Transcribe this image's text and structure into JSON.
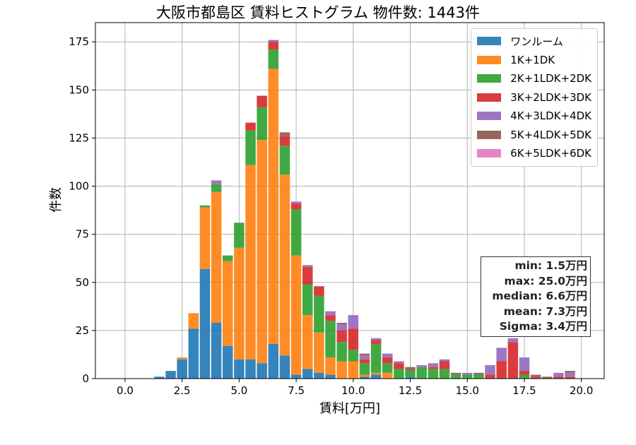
{
  "title": "大阪市都島区 賃料ヒストグラム  物件数: 1443件",
  "chart_data": {
    "type": "bar",
    "stacked": true,
    "title": "大阪市都島区 賃料ヒストグラム  物件数: 1443件",
    "xlabel": "賃料[万円]",
    "ylabel": "件数",
    "xlim": [
      -1.3,
      21.0
    ],
    "ylim": [
      0,
      185
    ],
    "xticks": [
      0.0,
      2.5,
      5.0,
      7.5,
      10.0,
      12.5,
      15.0,
      17.5,
      20.0
    ],
    "xtick_labels": [
      "0.0",
      "2.5",
      "5.0",
      "7.5",
      "10.0",
      "12.5",
      "15.0",
      "17.5",
      "20.0"
    ],
    "yticks": [
      0,
      25,
      50,
      75,
      100,
      125,
      150,
      175
    ],
    "ytick_labels": [
      "0",
      "25",
      "50",
      "75",
      "100",
      "125",
      "150",
      "175"
    ],
    "grid": true,
    "legend_position": "top-right",
    "bin_width": 0.5,
    "x": [
      1.5,
      2.0,
      2.5,
      3.0,
      3.5,
      4.0,
      4.5,
      5.0,
      5.5,
      6.0,
      6.5,
      7.0,
      7.5,
      8.0,
      8.5,
      9.0,
      9.5,
      10.0,
      10.5,
      11.0,
      11.5,
      12.0,
      12.5,
      13.0,
      13.5,
      14.0,
      14.5,
      15.0,
      15.5,
      16.0,
      16.5,
      17.0,
      17.5,
      18.0,
      18.5,
      19.0,
      19.5
    ],
    "series": [
      {
        "name": "ワンルーム",
        "color": "#1f77b4",
        "values": [
          1,
          4,
          10,
          26,
          57,
          29,
          17,
          10,
          10,
          8,
          18,
          12,
          2,
          5,
          3,
          2,
          0,
          0,
          1,
          2,
          0,
          0,
          1,
          0,
          0,
          0,
          0,
          0,
          0,
          0,
          0,
          0,
          0,
          0,
          0,
          0,
          0
        ]
      },
      {
        "name": "1K+1DK",
        "color": "#ff7f0e",
        "values": [
          0,
          0,
          1,
          8,
          32,
          68,
          44,
          58,
          101,
          116,
          143,
          94,
          62,
          28,
          21,
          9,
          9,
          9,
          1,
          1,
          3,
          0,
          0,
          0,
          0,
          0,
          0,
          0,
          0,
          0,
          0,
          0,
          0,
          0,
          0,
          0,
          0
        ]
      },
      {
        "name": "2K+1LDK+2DK",
        "color": "#2ca02c",
        "values": [
          0,
          0,
          0,
          0,
          1,
          4,
          3,
          13,
          18,
          17,
          10,
          15,
          24,
          16,
          19,
          19,
          10,
          6,
          6,
          15,
          5,
          5,
          3,
          6,
          5,
          5,
          2,
          2,
          2,
          0,
          0,
          0,
          2,
          0,
          0,
          0,
          0
        ]
      },
      {
        "name": "3K+2LDK+3DK",
        "color": "#d62728",
        "values": [
          0,
          0,
          0,
          0,
          0,
          0,
          0,
          0,
          4,
          6,
          4,
          5,
          3,
          9,
          5,
          3,
          6,
          11,
          2,
          2,
          3,
          3,
          0,
          0,
          1,
          4,
          0,
          0,
          0,
          2,
          9,
          19,
          2,
          1,
          0,
          1,
          1
        ]
      },
      {
        "name": "4K+3LDK+4DK",
        "color": "#9467bd",
        "values": [
          0,
          0,
          0,
          0,
          0,
          2,
          0,
          0,
          0,
          0,
          1,
          0,
          1,
          1,
          0,
          2,
          3,
          7,
          2,
          1,
          2,
          1,
          0,
          1,
          2,
          1,
          0,
          1,
          0,
          5,
          7,
          2,
          7,
          0,
          0,
          2,
          2
        ]
      },
      {
        "name": "5K+4LDK+5DK",
        "color": "#8c564b",
        "values": [
          0,
          0,
          0,
          0,
          0,
          0,
          0,
          0,
          0,
          0,
          0,
          2,
          0,
          0,
          0,
          0,
          1,
          0,
          1,
          0,
          0,
          0,
          2,
          0,
          0,
          0,
          1,
          0,
          1,
          0,
          0,
          0,
          0,
          1,
          1,
          0,
          1
        ]
      },
      {
        "name": "6K+5LDK+6DK",
        "color": "#e377c2",
        "values": [
          0,
          0,
          0,
          0,
          0,
          0,
          0,
          0,
          0,
          0,
          0,
          0,
          0,
          0,
          0,
          0,
          0,
          0,
          0,
          0,
          0,
          0,
          0,
          0,
          0,
          0,
          0,
          0,
          0,
          0,
          0,
          0,
          0,
          0,
          0,
          0,
          0
        ]
      }
    ]
  },
  "stats": {
    "min": "min: 1.5万円",
    "max": "max: 25.0万円",
    "median": "median: 6.6万円",
    "mean": "mean: 7.3万円",
    "sigma": "Sigma: 3.4万円"
  }
}
